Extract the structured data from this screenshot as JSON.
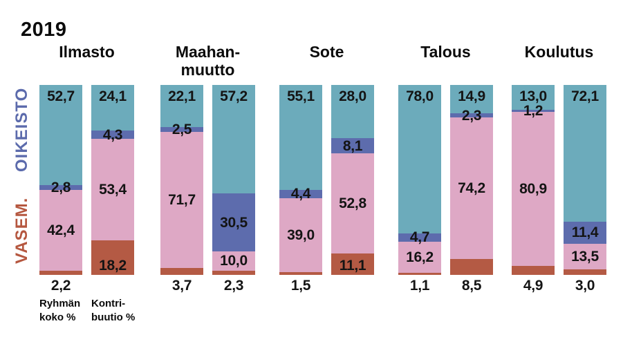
{
  "title": "2019",
  "axis": {
    "right_label": "OIKEISTO",
    "left_label": "VASEM.",
    "right_label_color": "#5C6BAC",
    "left_label_color": "#B5573F"
  },
  "footnotes": {
    "bar1": [
      "Ryhmän",
      "koko %"
    ],
    "bar2": [
      "Kontri-",
      "buutio %"
    ]
  },
  "chart_data": {
    "type": "bar",
    "stacked": true,
    "unit": "%",
    "title": "2019",
    "bar_labels": [
      "Ryhmän koko %",
      "Kontribuutio %"
    ],
    "axis_labels": {
      "top_bloc": "OIKEISTO",
      "bottom_bloc": "VASEM."
    },
    "segment_keys": [
      "teal",
      "purple",
      "pink",
      "red"
    ],
    "colors": {
      "teal": "#6CABBB",
      "purple": "#5D6CAD",
      "pink": "#DEA8C5",
      "red": "#B45A44"
    },
    "ylim": [
      0,
      100
    ],
    "grid": false,
    "legend_position": "none",
    "groups": [
      {
        "title_lines": [
          "Ilmasto"
        ],
        "bars": [
          {
            "name": "Ryhmän koko %",
            "values": {
              "teal": 52.7,
              "purple": 2.8,
              "pink": 42.4,
              "red": 2.2
            }
          },
          {
            "name": "Kontribuutio %",
            "values": {
              "teal": 24.1,
              "purple": 4.3,
              "pink": 53.4,
              "red": 18.2
            }
          }
        ]
      },
      {
        "title_lines": [
          "Maahan-",
          "muutto"
        ],
        "bars": [
          {
            "name": "Ryhmän koko %",
            "values": {
              "teal": 22.1,
              "purple": 2.5,
              "pink": 71.7,
              "red": 3.7
            }
          },
          {
            "name": "Kontribuutio %",
            "values": {
              "teal": 57.2,
              "purple": 30.5,
              "pink": 10.0,
              "red": 2.3
            }
          }
        ]
      },
      {
        "title_lines": [
          "Sote"
        ],
        "bars": [
          {
            "name": "Ryhmän koko %",
            "values": {
              "teal": 55.1,
              "purple": 4.4,
              "pink": 39.0,
              "red": 1.5
            }
          },
          {
            "name": "Kontribuutio %",
            "values": {
              "teal": 28.0,
              "purple": 8.1,
              "pink": 52.8,
              "red": 11.1
            }
          }
        ]
      },
      {
        "title_lines": [
          "Talous"
        ],
        "bars": [
          {
            "name": "Ryhmän koko %",
            "values": {
              "teal": 78.0,
              "purple": 4.7,
              "pink": 16.2,
              "red": 1.1
            }
          },
          {
            "name": "Kontribuutio %",
            "values": {
              "teal": 14.9,
              "purple": 2.3,
              "pink": 74.2,
              "red": 8.5
            }
          }
        ]
      },
      {
        "title_lines": [
          "Koulutus"
        ],
        "bars": [
          {
            "name": "Ryhmän koko %",
            "values": {
              "teal": 13.0,
              "purple": 1.2,
              "pink": 80.9,
              "red": 4.9
            }
          },
          {
            "name": "Kontribuutio %",
            "values": {
              "teal": 72.1,
              "purple": 11.4,
              "pink": 13.5,
              "red": 3.0
            }
          }
        ]
      }
    ]
  }
}
